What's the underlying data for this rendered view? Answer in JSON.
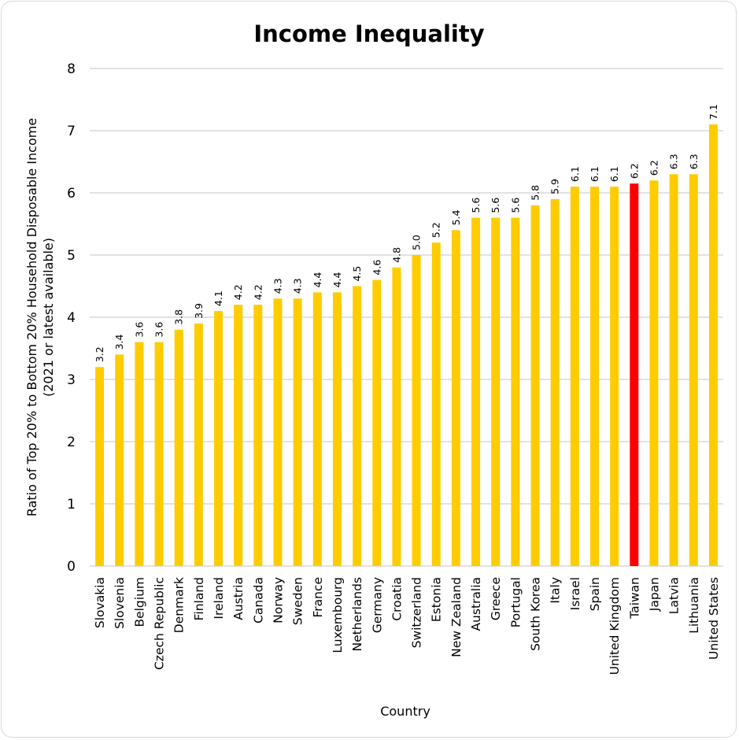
{
  "chart_data": {
    "type": "bar",
    "title": "Income Inequality",
    "xlabel": "Country",
    "ylabel_lines": [
      "Ratio of Top 20% to Bottom 20% Household Disposable Income",
      "(2021 or latest available)"
    ],
    "ylim": [
      0,
      8
    ],
    "yticks": [
      0,
      1,
      2,
      3,
      4,
      5,
      6,
      7,
      8
    ],
    "grid": true,
    "legend": "none",
    "categories": [
      "Slovakia",
      "Slovenia",
      "Belgium",
      "Czech Republic",
      "Denmark",
      "Finland",
      "Ireland",
      "Austria",
      "Canada",
      "Norway",
      "Sweden",
      "France",
      "Luxembourg",
      "Netherlands",
      "Germany",
      "Croatia",
      "Switzerland",
      "Estonia",
      "New Zealand",
      "Australia",
      "Greece",
      "Portugal",
      "South Korea",
      "Italy",
      "Israel",
      "Spain",
      "United Kingdom",
      "Taiwan",
      "Japan",
      "Latvia",
      "Lithuania",
      "United States"
    ],
    "values": [
      3.2,
      3.4,
      3.6,
      3.6,
      3.8,
      3.9,
      4.1,
      4.2,
      4.2,
      4.3,
      4.3,
      4.4,
      4.4,
      4.5,
      4.6,
      4.8,
      5.0,
      5.2,
      5.4,
      5.6,
      5.6,
      5.6,
      5.8,
      5.9,
      6.1,
      6.1,
      6.1,
      6.15,
      6.2,
      6.3,
      6.3,
      7.1
    ],
    "data_labels": [
      "3.2",
      "3.4",
      "3.6",
      "3.6",
      "3.8",
      "3.9",
      "4.1",
      "4.2",
      "4.2",
      "4.3",
      "4.3",
      "4.4",
      "4.4",
      "4.5",
      "4.6",
      "4.8",
      "5.0",
      "5.2",
      "5.4",
      "5.6",
      "5.6",
      "5.6",
      "5.8",
      "5.9",
      "6.1",
      "6.1",
      "6.1",
      "6.2",
      "6.2",
      "6.3",
      "6.3",
      "7.1"
    ],
    "highlight": "Taiwan",
    "colors": {
      "bar": "#FFCC00",
      "highlight": "#FF0000",
      "grid": "#d9d9d9"
    }
  }
}
